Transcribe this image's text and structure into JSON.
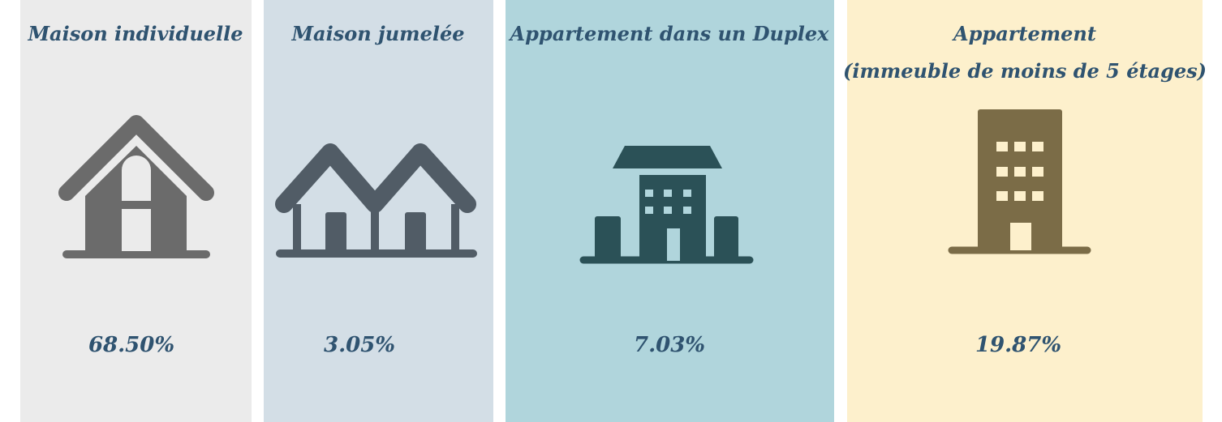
{
  "panels": [
    {
      "title": [
        "Maison individuelle"
      ],
      "value": "68.50%"
    },
    {
      "title": [
        "Maison jumelée"
      ],
      "value": "3.05%"
    },
    {
      "title": [
        "Appartement dans un Duplex"
      ],
      "value": "7.03%"
    },
    {
      "title": [
        "Appartement",
        "(immeuble de moins de 5 étages)"
      ],
      "value": "19.87%"
    }
  ]
}
